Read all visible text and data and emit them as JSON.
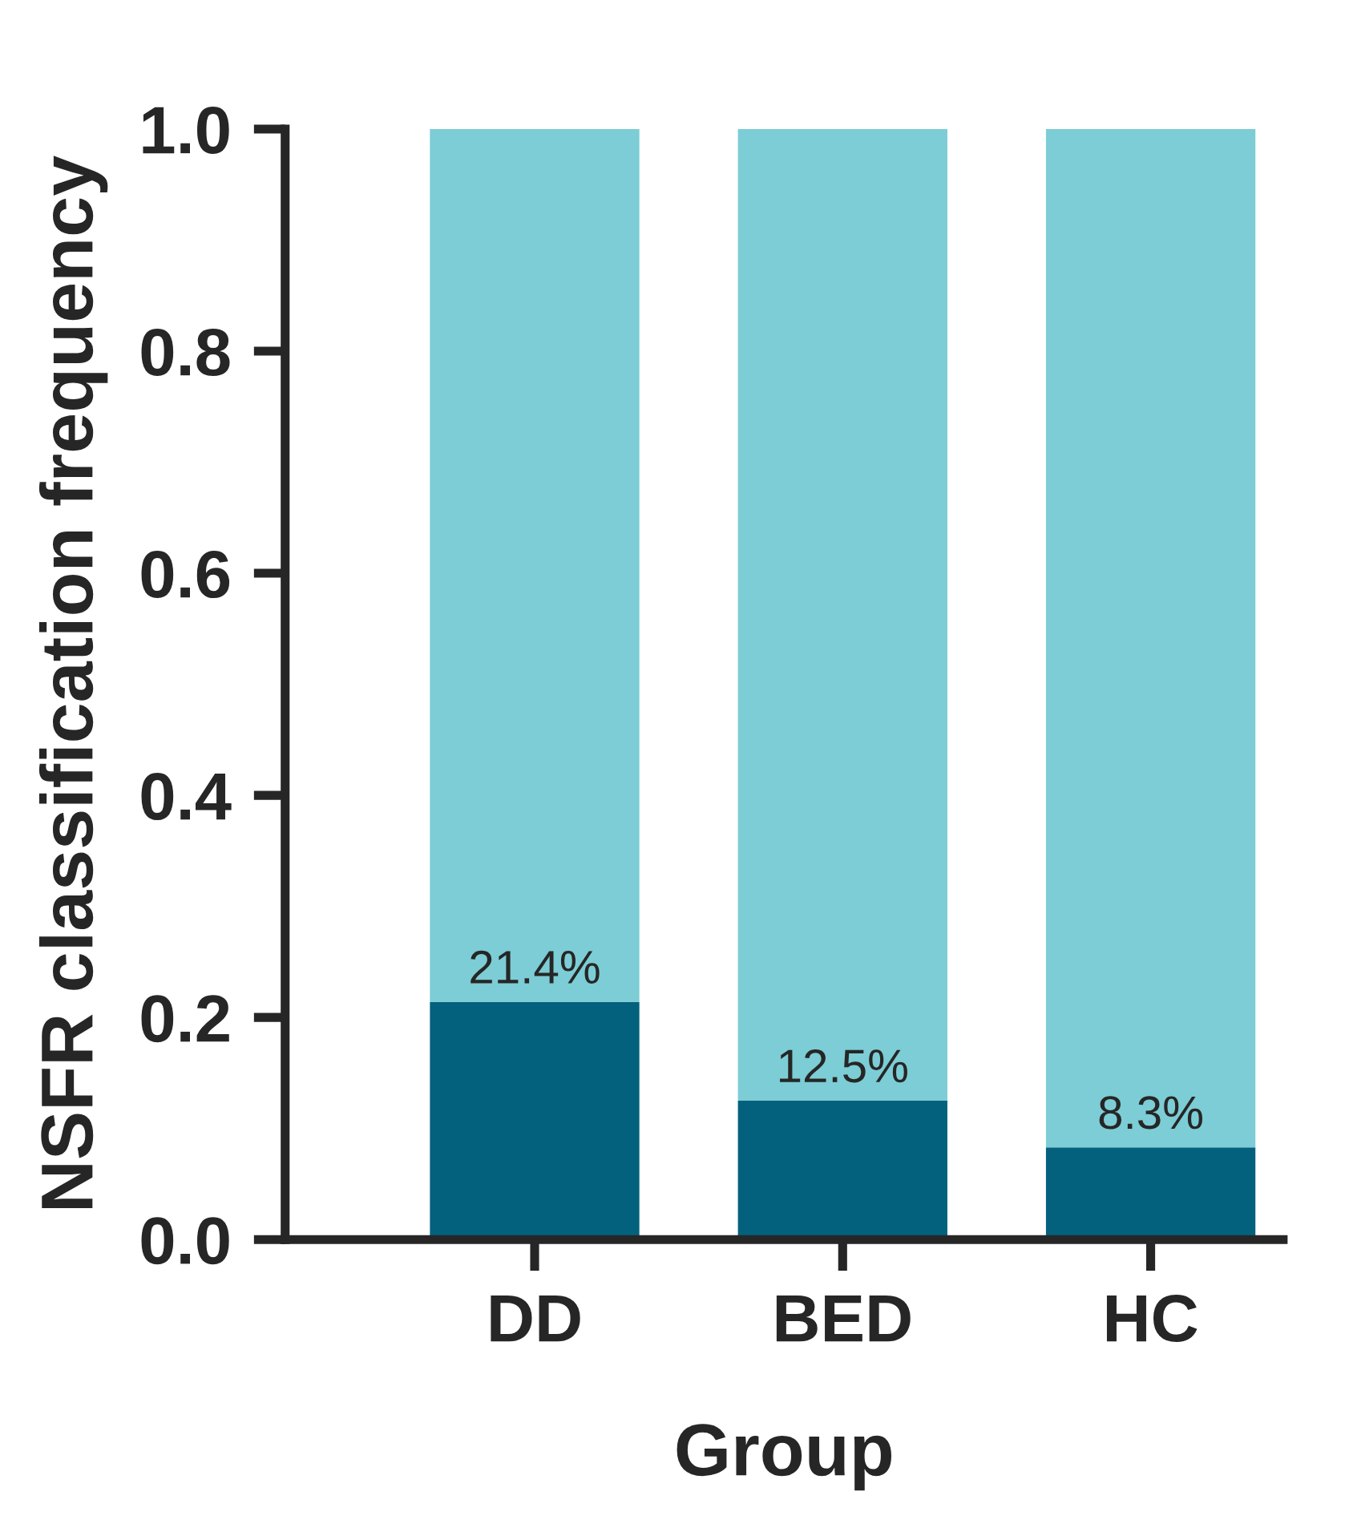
{
  "chart_data": {
    "type": "bar",
    "stacked": true,
    "xlabel": "Group",
    "ylabel": "NSFR classification frequency",
    "categories": [
      "DD",
      "BED",
      "HC"
    ],
    "series": [
      {
        "color": "#03617d",
        "values": [
          0.214,
          0.125,
          0.083
        ],
        "value_labels": [
          "21.4%",
          "12.5%",
          "8.3%"
        ]
      },
      {
        "color": "#7ccdd5",
        "values": [
          0.786,
          0.875,
          0.917
        ]
      }
    ],
    "ylim": [
      0,
      1.0
    ],
    "yticks": [
      {
        "value": 0,
        "label": "0.0"
      },
      {
        "value": 0.2,
        "label": "0.2"
      },
      {
        "value": 0.4,
        "label": "0.4"
      },
      {
        "value": 0.6,
        "label": "0.6"
      },
      {
        "value": 0.8,
        "label": "0.8"
      },
      {
        "value": 1.0,
        "label": "1.0"
      }
    ],
    "grid": false,
    "legend": false
  }
}
